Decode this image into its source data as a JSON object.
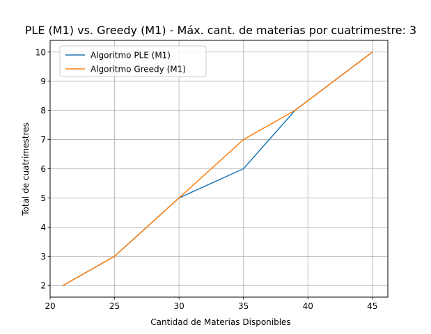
{
  "chart_data": {
    "type": "line",
    "title": "PLE (M1) vs. Greedy (M1) - Máx. cant. de materias por cuatrimestre: 3",
    "xlabel": "Cantidad de Materias Disponibles",
    "ylabel": "Total de cuatrimestres",
    "xlim": [
      20,
      46.2
    ],
    "ylim": [
      1.6,
      10.4
    ],
    "xticks": [
      20,
      25,
      30,
      35,
      40,
      45
    ],
    "yticks": [
      2,
      3,
      4,
      5,
      6,
      7,
      8,
      9,
      10
    ],
    "grid": true,
    "legend_position": "top-left",
    "series": [
      {
        "name": "Algoritmo PLE (M1)",
        "color": "#1f77b4",
        "x": [
          21,
          25,
          30,
          35,
          39,
          45
        ],
        "y": [
          2,
          3,
          5,
          6,
          8,
          10
        ]
      },
      {
        "name": "Algoritmo Greedy (M1)",
        "color": "#ff7f0e",
        "x": [
          21,
          25,
          30,
          35,
          39,
          45
        ],
        "y": [
          2,
          3,
          5,
          7,
          8,
          10
        ]
      }
    ]
  }
}
